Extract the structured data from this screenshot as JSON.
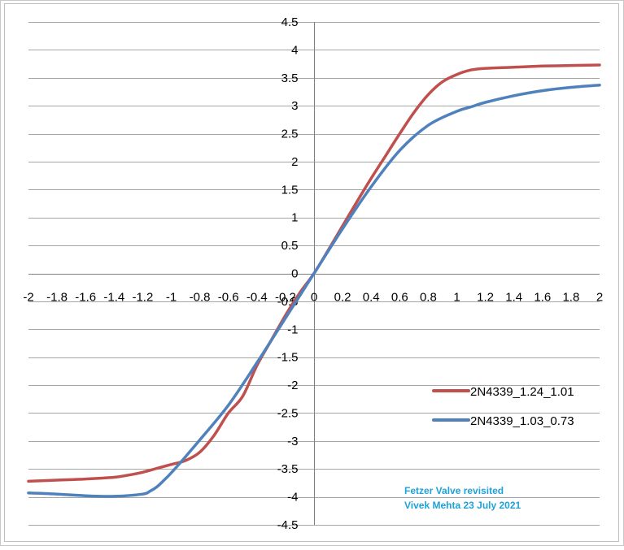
{
  "chart_data": {
    "type": "line",
    "title": "",
    "xlabel": "",
    "ylabel": "",
    "xlim": [
      -2,
      2
    ],
    "ylim": [
      -4.5,
      4.5
    ],
    "x_ticks": [
      -2,
      -1.8,
      -1.6,
      -1.4,
      -1.2,
      -1,
      -0.8,
      -0.6,
      -0.4,
      -0.2,
      0,
      0.2,
      0.4,
      0.6,
      0.8,
      1,
      1.2,
      1.4,
      1.6,
      1.8,
      2
    ],
    "x_tick_labels": [
      "-2",
      "-1.8",
      "-1.6",
      "-1.4",
      "-1.2",
      "-1",
      "-0.8",
      "-0.6",
      "-0.4",
      "-0.2",
      "0",
      "0.2",
      "0.4",
      "0.6",
      "0.8",
      "1",
      "1.2",
      "1.4",
      "1.6",
      "1.8",
      "2"
    ],
    "y_ticks": [
      4.5,
      4,
      3.5,
      3,
      2.5,
      2,
      1.5,
      1,
      0.5,
      0,
      -0.5,
      -1,
      -1.5,
      -2,
      -2.5,
      -3,
      -3.5,
      -4,
      -4.5
    ],
    "y_tick_labels": [
      "4.5",
      "4",
      "3.5",
      "3",
      "2.5",
      "2",
      "1.5",
      "1",
      "0.5",
      "0",
      "-0.5",
      "-1",
      "-1.5",
      "-2",
      "-2.5",
      "-3",
      "-3.5",
      "-4",
      "-4.5"
    ],
    "grid": true,
    "legend_position": "right",
    "series": [
      {
        "name": "2N4339_1.24_1.01",
        "color": "#c0504d",
        "x": [
          -2,
          -1.8,
          -1.6,
          -1.4,
          -1.3,
          -1.2,
          -1.1,
          -1,
          -0.9,
          -0.8,
          -0.7,
          -0.6,
          -0.5,
          -0.4,
          -0.3,
          -0.2,
          -0.1,
          0,
          0.1,
          0.2,
          0.3,
          0.4,
          0.5,
          0.6,
          0.7,
          0.8,
          0.9,
          1,
          1.1,
          1.2,
          1.4,
          1.6,
          1.8,
          2
        ],
        "values": [
          -3.72,
          -3.7,
          -3.68,
          -3.65,
          -3.61,
          -3.56,
          -3.49,
          -3.42,
          -3.35,
          -3.2,
          -2.9,
          -2.5,
          -2.2,
          -1.65,
          -1.2,
          -0.75,
          -0.35,
          0,
          0.42,
          0.85,
          1.28,
          1.7,
          2.1,
          2.5,
          2.88,
          3.2,
          3.43,
          3.56,
          3.64,
          3.67,
          3.69,
          3.71,
          3.72,
          3.73
        ]
      },
      {
        "name": "2N4339_1.03_0.73",
        "color": "#4f81bd",
        "x": [
          -2,
          -1.8,
          -1.6,
          -1.4,
          -1.2,
          -1.15,
          -1.1,
          -1.05,
          -1,
          -0.9,
          -0.8,
          -0.6,
          -0.4,
          -0.2,
          0,
          0.2,
          0.4,
          0.6,
          0.8,
          1,
          1.1,
          1.2,
          1.4,
          1.6,
          1.8,
          2
        ],
        "values": [
          -3.93,
          -3.95,
          -3.98,
          -3.99,
          -3.95,
          -3.9,
          -3.82,
          -3.7,
          -3.57,
          -3.28,
          -2.98,
          -2.36,
          -1.6,
          -0.8,
          0,
          0.8,
          1.55,
          2.2,
          2.65,
          2.9,
          2.98,
          3.06,
          3.18,
          3.27,
          3.33,
          3.37
        ]
      }
    ],
    "annotations": [
      "Fetzer Valve revisited",
      "Vivek Mehta 23 July 2021"
    ],
    "annotation_color": "#1ea2d9"
  }
}
